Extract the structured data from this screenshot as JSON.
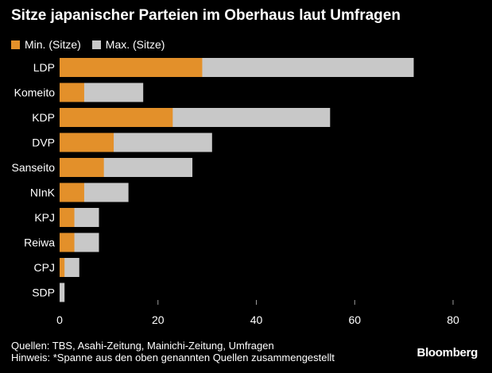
{
  "title": "Sitze japanischer Parteien im Oberhaus laut Umfragen",
  "legend": [
    {
      "label": "Min. (Sitze)",
      "color": "#e3902a"
    },
    {
      "label": "Max. (Sitze)",
      "color": "#c8c8c8"
    }
  ],
  "footer": {
    "sources": "Quellen: TBS, Asahi-Zeitung, Mainichi-Zeitung, Umfragen",
    "note": "Hinweis: *Spanne aus den oben genannten Quellen zusammengestellt"
  },
  "brand": "Bloomberg",
  "chart_data": {
    "type": "bar",
    "orientation": "horizontal",
    "stacked": false,
    "categories": [
      "LDP",
      "Komeito",
      "KDP",
      "DVP",
      "Sanseito",
      "NInK",
      "KPJ",
      "Reiwa",
      "CPJ",
      "SDP"
    ],
    "series": [
      {
        "name": "Min. (Sitze)",
        "color": "#e3902a",
        "values": [
          29,
          5,
          23,
          11,
          9,
          5,
          3,
          3,
          1,
          0
        ]
      },
      {
        "name": "Max. (Sitze)",
        "color": "#c8c8c8",
        "values": [
          72,
          17,
          55,
          31,
          27,
          14,
          8,
          8,
          4,
          1
        ]
      }
    ],
    "xlim": [
      0,
      80
    ],
    "xticks": [
      0,
      20,
      40,
      60,
      80
    ],
    "grid": false
  }
}
